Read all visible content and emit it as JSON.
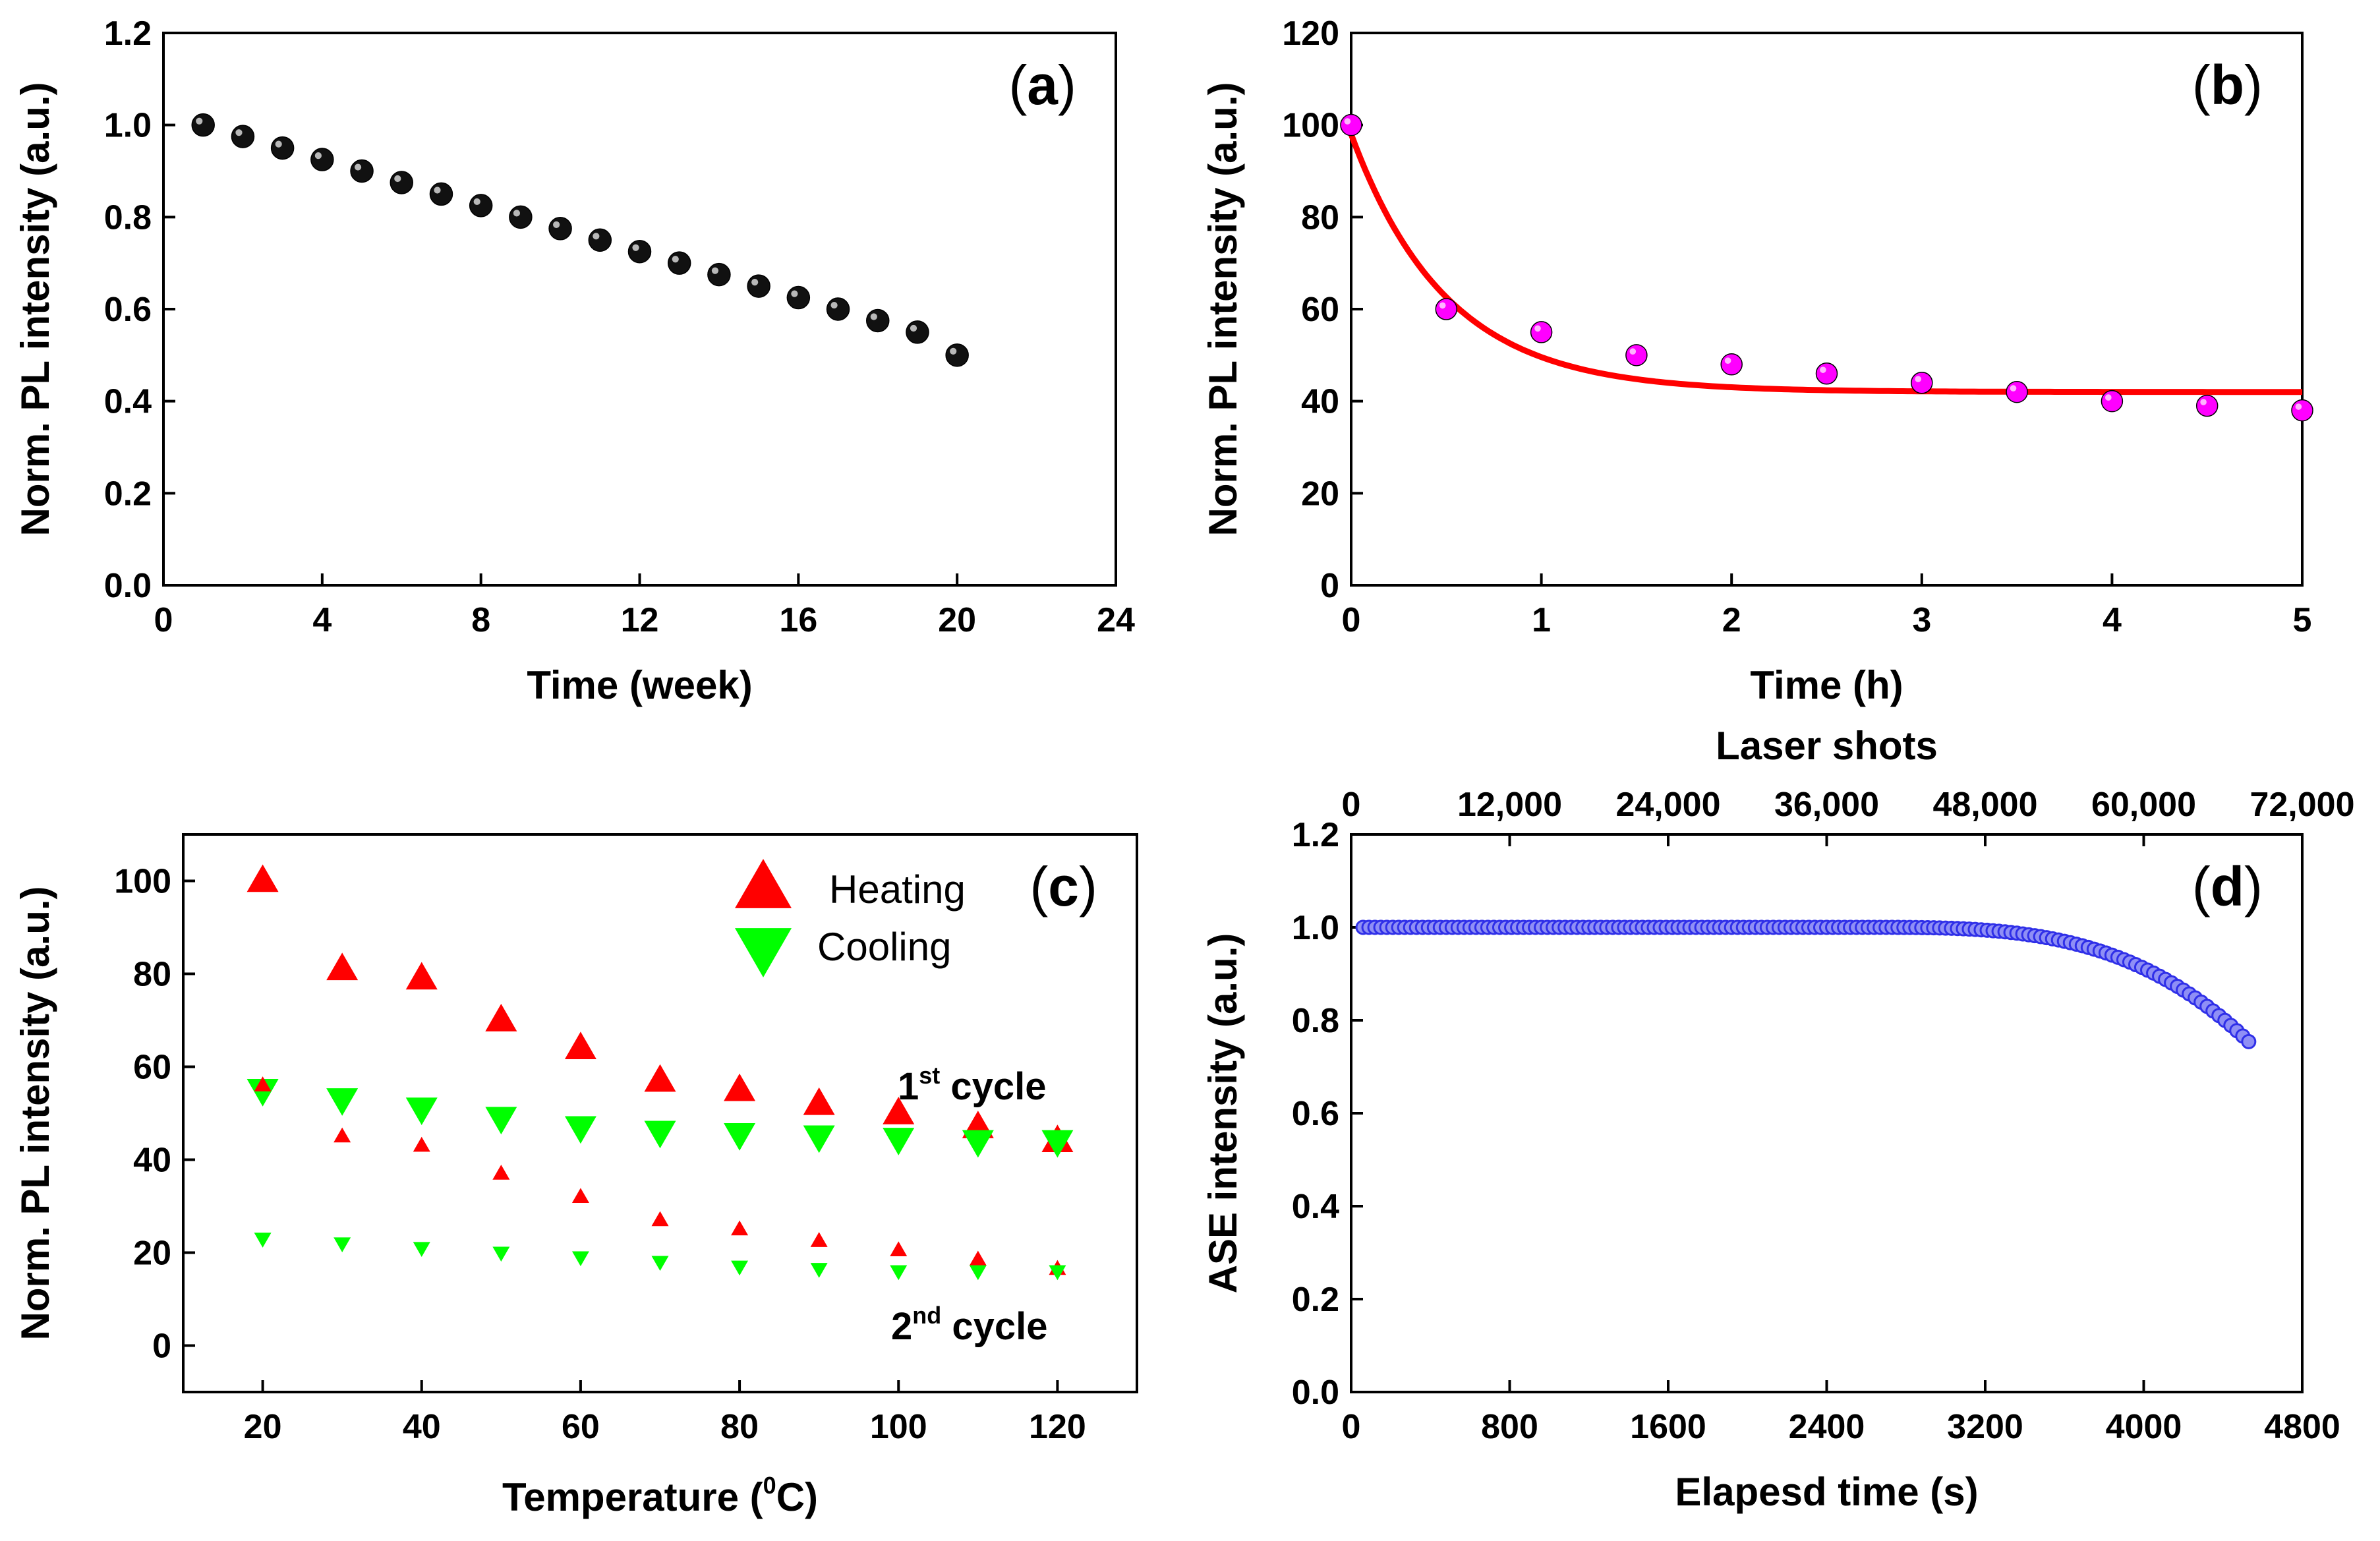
{
  "chart_data": [
    {
      "id": "a",
      "type": "scatter",
      "panel_label_prefix": "(",
      "panel_label": "a",
      "panel_label_suffix": ")",
      "xlabel": "Time (week)",
      "ylabel": "Norm. PL intensity (a.u.)",
      "xlim": [
        0,
        24
      ],
      "ylim": [
        0,
        1.2
      ],
      "xticks": [
        "0",
        "4",
        "8",
        "12",
        "16",
        "20",
        "24"
      ],
      "yticks": [
        "0.0",
        "0.2",
        "0.4",
        "0.6",
        "0.8",
        "1.0",
        "1.2"
      ],
      "marker_color": "#111111",
      "series": [
        {
          "name": "PL",
          "x": [
            1,
            2,
            3,
            4,
            5,
            6,
            7,
            8,
            9,
            10,
            11,
            12,
            13,
            14,
            15,
            16,
            17,
            18,
            19,
            20
          ],
          "y": [
            1.0,
            0.975,
            0.95,
            0.925,
            0.9,
            0.875,
            0.85,
            0.825,
            0.8,
            0.775,
            0.75,
            0.725,
            0.7,
            0.675,
            0.65,
            0.625,
            0.6,
            0.575,
            0.55,
            0.5
          ]
        }
      ]
    },
    {
      "id": "b",
      "type": "scatter",
      "panel_label_prefix": "(",
      "panel_label": "b",
      "panel_label_suffix": ")",
      "xlabel": "Time (h)",
      "ylabel": "Norm. PL intensity (a.u.)",
      "xlim": [
        0,
        5
      ],
      "ylim": [
        0,
        120
      ],
      "xticks": [
        "0",
        "1",
        "2",
        "3",
        "4",
        "5"
      ],
      "yticks": [
        "0",
        "20",
        "40",
        "60",
        "80",
        "100",
        "120"
      ],
      "marker_color": "#ff00ff",
      "fit_color": "#ff0000",
      "series": [
        {
          "name": "PL",
          "x": [
            0,
            0.5,
            1,
            1.5,
            2,
            2.5,
            3,
            3.5,
            4,
            4.5,
            5
          ],
          "y": [
            100,
            60,
            55,
            50,
            48,
            46,
            44,
            42,
            40,
            39,
            38
          ]
        }
      ],
      "fit": {
        "model": "exponential decay",
        "y0": 42,
        "A": 56,
        "tau": 0.5
      }
    },
    {
      "id": "c",
      "type": "scatter",
      "panel_label_prefix": "(",
      "panel_label": "c",
      "panel_label_suffix": ")",
      "xlabel_main": "Temperature (",
      "xlabel_sup": "0",
      "xlabel_tail": "C)",
      "ylabel": "Norm. PL intensity (a.u.)",
      "xlim": [
        10,
        130
      ],
      "ylim": [
        -10,
        110
      ],
      "xticks": [
        "20",
        "40",
        "60",
        "80",
        "100",
        "120"
      ],
      "yticks": [
        "0",
        "20",
        "40",
        "60",
        "80",
        "100"
      ],
      "heating_color": "#ff0000",
      "cooling_color": "#00ff00",
      "legend": [
        {
          "name": "Heating",
          "marker": "triangle-up"
        },
        {
          "name": "Cooling",
          "marker": "triangle-down"
        }
      ],
      "annotations": {
        "first_num": "1",
        "first_sup": "st",
        "first_word": " cycle",
        "second_num": "2",
        "second_sup": "nd",
        "second_word": " cycle"
      },
      "x": [
        20,
        30,
        40,
        50,
        60,
        70,
        80,
        90,
        100,
        110,
        120
      ],
      "series": [
        {
          "name": "1st cycle Heating",
          "values": [
            100,
            81,
            79,
            70,
            64,
            57,
            55,
            52,
            50,
            47,
            44
          ]
        },
        {
          "name": "1st cycle Cooling",
          "values": [
            55,
            53,
            51,
            49,
            47,
            46,
            45.5,
            45,
            44.5,
            44,
            44
          ]
        },
        {
          "name": "2nd cycle Heating",
          "values": [
            56,
            45,
            43,
            37,
            32,
            27,
            25,
            22.5,
            20.5,
            18.5,
            16.5
          ]
        },
        {
          "name": "2nd cycle Cooling",
          "values": [
            23,
            22,
            21,
            20,
            19,
            18,
            17,
            16.5,
            16,
            16,
            16
          ]
        }
      ]
    },
    {
      "id": "d",
      "type": "scatter",
      "panel_label_prefix": "(",
      "panel_label": "d",
      "panel_label_suffix": ")",
      "xlabel": "Elapesd time (s)",
      "x2label": "Laser shots",
      "ylabel": "ASE intensity (a.u.)",
      "xlim": [
        0,
        4800
      ],
      "x2lim": [
        0,
        72000
      ],
      "ylim": [
        0,
        1.2
      ],
      "xticks": [
        "0",
        "800",
        "1600",
        "2400",
        "3200",
        "4000",
        "4800"
      ],
      "x2ticks": [
        "0",
        "12,000",
        "24,000",
        "36,000",
        "48,000",
        "60,000",
        "72,000"
      ],
      "yticks": [
        "0.0",
        "0.2",
        "0.4",
        "0.6",
        "0.8",
        "1.0",
        "1.2"
      ],
      "marker_color": "#2f2fe8",
      "series": [
        {
          "name": "ASE",
          "x_start": 60,
          "x_end": 4540,
          "x_step": 30,
          "decay_onset": 2600,
          "decay_amplitude": 0.25,
          "decay_exponent": 3.2
        }
      ]
    }
  ]
}
